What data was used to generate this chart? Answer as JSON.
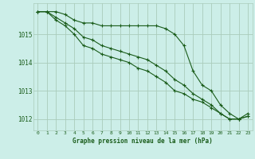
{
  "bg_color": "#cceee8",
  "grid_color": "#aaccbb",
  "line_color": "#1a5c1a",
  "marker_color": "#1a5c1a",
  "xlabel": "Graphe pression niveau de la mer (hPa)",
  "xlabel_color": "#1a5c1a",
  "tick_color": "#1a5c1a",
  "xlim": [
    -0.5,
    23.5
  ],
  "ylim": [
    1011.6,
    1016.1
  ],
  "yticks": [
    1012,
    1013,
    1014,
    1015
  ],
  "xticks": [
    0,
    1,
    2,
    3,
    4,
    5,
    6,
    7,
    8,
    9,
    10,
    11,
    12,
    13,
    14,
    15,
    16,
    17,
    18,
    19,
    20,
    21,
    22,
    23
  ],
  "series": [
    [
      1015.8,
      1015.8,
      1015.8,
      1015.7,
      1015.5,
      1015.4,
      1015.4,
      1015.3,
      1015.3,
      1015.3,
      1015.3,
      1015.3,
      1015.3,
      1015.3,
      1015.2,
      1015.0,
      1014.6,
      1013.7,
      1013.2,
      1013.0,
      1012.5,
      1012.2,
      1012.0,
      1012.2
    ],
    [
      1015.8,
      1015.8,
      1015.6,
      1015.4,
      1015.2,
      1014.9,
      1014.8,
      1014.6,
      1014.5,
      1014.4,
      1014.3,
      1014.2,
      1014.1,
      1013.9,
      1013.7,
      1013.4,
      1013.2,
      1012.9,
      1012.7,
      1012.5,
      1012.2,
      1012.0,
      1012.0,
      1012.1
    ],
    [
      1015.8,
      1015.8,
      1015.5,
      1015.3,
      1015.0,
      1014.6,
      1014.5,
      1014.3,
      1014.2,
      1014.1,
      1014.0,
      1013.8,
      1013.7,
      1013.5,
      1013.3,
      1013.0,
      1012.9,
      1012.7,
      1012.6,
      1012.4,
      1012.2,
      1012.0,
      1012.0,
      1012.1
    ]
  ],
  "figsize": [
    3.2,
    2.0
  ],
  "dpi": 100
}
